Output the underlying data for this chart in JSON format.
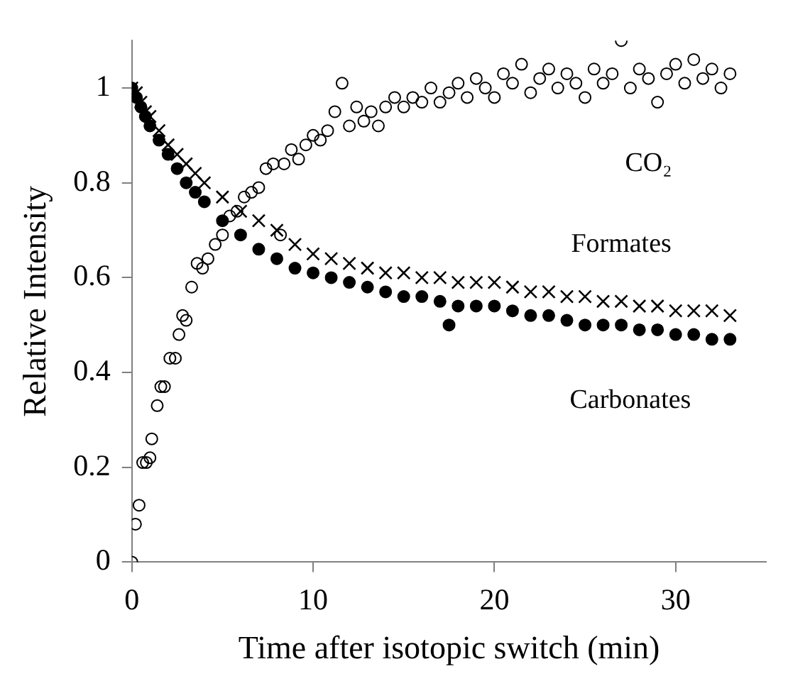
{
  "chart_data": {
    "type": "scatter",
    "xlabel": "Time after isotopic switch (min)",
    "ylabel": "Relative Intensity",
    "xlim": [
      0,
      35
    ],
    "xticks": [
      0,
      10,
      20,
      30
    ],
    "ylim": [
      0,
      1.1
    ],
    "yticks": [
      0,
      0.2,
      0.4,
      0.6,
      0.8,
      1
    ],
    "grid": false,
    "legend": false,
    "series": [
      {
        "name": "CO₂",
        "color": "#000000",
        "marker": "circle",
        "x": [
          0,
          0.2,
          0.4,
          0.6,
          0.8,
          1,
          1.1,
          1.4,
          1.6,
          1.8,
          2.1,
          2.4,
          2.6,
          2.8,
          3,
          3.3,
          3.6,
          3.9,
          4.2,
          4.6,
          5,
          5.4,
          5.8,
          6.2,
          6.6,
          7,
          7.4,
          7.8,
          8.2,
          8.4,
          8.8,
          9.2,
          9.6,
          10,
          10.4,
          10.8,
          11.2,
          11.6,
          12,
          12.4,
          12.8,
          13.2,
          13.6,
          14,
          14.5,
          15,
          15.5,
          16,
          16.5,
          17,
          17.5,
          18,
          18.5,
          19,
          19.5,
          20,
          20.5,
          21,
          21.5,
          22,
          22.5,
          23,
          23.5,
          24,
          24.5,
          25,
          25.5,
          26,
          26.5,
          27,
          27.5,
          28,
          28.5,
          29,
          29.5,
          30,
          30.5,
          31,
          31.5,
          32,
          32.5,
          33
        ],
        "values": [
          0,
          0.08,
          0.12,
          0.21,
          0.21,
          0.22,
          0.26,
          0.33,
          0.37,
          0.37,
          0.43,
          0.43,
          0.48,
          0.52,
          0.51,
          0.58,
          0.63,
          0.62,
          0.64,
          0.67,
          0.69,
          0.73,
          0.74,
          0.77,
          0.78,
          0.79,
          0.83,
          0.84,
          0.69,
          0.84,
          0.87,
          0.85,
          0.88,
          0.9,
          0.89,
          0.91,
          0.95,
          1.01,
          0.92,
          0.96,
          0.93,
          0.95,
          0.92,
          0.96,
          0.98,
          0.96,
          0.98,
          0.97,
          1.0,
          0.97,
          0.99,
          1.01,
          0.98,
          1.02,
          1.0,
          0.98,
          1.03,
          1.01,
          1.05,
          0.99,
          1.02,
          1.04,
          1.0,
          1.03,
          1.01,
          0.98,
          1.04,
          1.01,
          1.03,
          1.1,
          1.0,
          1.04,
          1.02,
          0.97,
          1.03,
          1.05,
          1.01,
          1.06,
          1.02,
          1.04,
          1.0,
          1.03
        ]
      },
      {
        "name": "Carbonates",
        "color": "#000000",
        "marker": "circle",
        "x": [
          0,
          0.25,
          0.5,
          0.75,
          1,
          1.5,
          2,
          2.5,
          3,
          3.5,
          4,
          5,
          6,
          7,
          8,
          9,
          10,
          11,
          12,
          13,
          14,
          15,
          16,
          17,
          17.5,
          18,
          19,
          20,
          21,
          22,
          23,
          24,
          25,
          26,
          27,
          28,
          29,
          30,
          31,
          32,
          33
        ],
        "values": [
          1,
          0.98,
          0.96,
          0.94,
          0.92,
          0.89,
          0.86,
          0.83,
          0.8,
          0.78,
          0.76,
          0.72,
          0.69,
          0.66,
          0.64,
          0.62,
          0.61,
          0.6,
          0.59,
          0.58,
          0.57,
          0.56,
          0.56,
          0.55,
          0.5,
          0.54,
          0.54,
          0.54,
          0.53,
          0.52,
          0.52,
          0.51,
          0.5,
          0.5,
          0.5,
          0.49,
          0.49,
          0.48,
          0.48,
          0.47,
          0.47
        ]
      },
      {
        "name": "Formates",
        "color": "#000000",
        "marker": "cross",
        "x": [
          0,
          0.25,
          0.5,
          0.75,
          1,
          1.5,
          2,
          2.5,
          3,
          3.5,
          4,
          5,
          6,
          7,
          8,
          9,
          10,
          11,
          12,
          13,
          14,
          15,
          16,
          17,
          18,
          19,
          20,
          21,
          22,
          23,
          24,
          25,
          26,
          27,
          28,
          29,
          30,
          31,
          32,
          33
        ],
        "values": [
          1,
          0.99,
          0.97,
          0.95,
          0.94,
          0.91,
          0.88,
          0.86,
          0.84,
          0.82,
          0.8,
          0.77,
          0.74,
          0.72,
          0.7,
          0.67,
          0.65,
          0.64,
          0.63,
          0.62,
          0.61,
          0.61,
          0.6,
          0.6,
          0.59,
          0.59,
          0.59,
          0.58,
          0.57,
          0.57,
          0.56,
          0.56,
          0.55,
          0.55,
          0.54,
          0.54,
          0.53,
          0.53,
          0.53,
          0.52
        ]
      }
    ]
  }
}
